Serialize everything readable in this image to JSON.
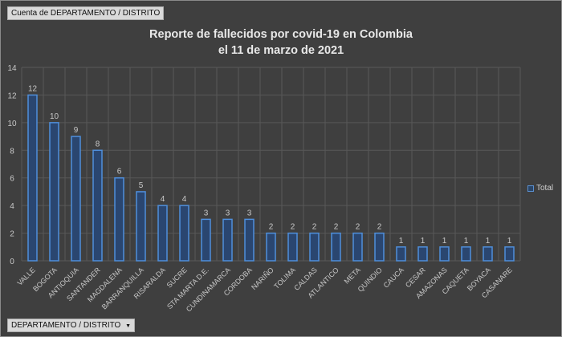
{
  "value_field_button": "Cuenta de DEPARTAMENTO / DISTRITO",
  "axis_field_button": "DEPARTAMENTO / DISTRITO",
  "axis_field_dropdown_icon": "triangle-down-icon",
  "colors": {
    "bar_fill": "#2a4670",
    "bar_border": "#4f8fdc",
    "background": "#3f3f3f",
    "grid": "#585858",
    "text": "#c8c8c8"
  },
  "chart_data": {
    "type": "bar",
    "title_lines": [
      "Reporte de fallecidos por covid-19 en Colombia",
      "el 11 de marzo de 2021"
    ],
    "categories": [
      "VALLE",
      "BOGOTA",
      "ANTIOQUIA",
      "SANTANDER",
      "MAGDALENA",
      "BARRANQUILLA",
      "RISARALDA",
      "SUCRE",
      "STA MARTA D.E.",
      "CUNDINAMARCA",
      "CORDOBA",
      "NARIÑO",
      "TOLIMA",
      "CALDAS",
      "ATLANTICO",
      "META",
      "QUINDIO",
      "CAUCA",
      "CESAR",
      "AMAZONAS",
      "CAQUETA",
      "BOYACA",
      "CASANARE"
    ],
    "series": [
      {
        "name": "Total",
        "values": [
          12,
          10,
          9,
          8,
          6,
          5,
          4,
          4,
          3,
          3,
          3,
          2,
          2,
          2,
          2,
          2,
          2,
          1,
          1,
          1,
          1,
          1,
          1
        ]
      }
    ],
    "yticks": [
      "0",
      "2",
      "4",
      "6",
      "8",
      "10",
      "12",
      "14"
    ],
    "ylim": [
      0,
      14
    ],
    "grid": true,
    "legend_position": "right",
    "data_labels": true
  }
}
